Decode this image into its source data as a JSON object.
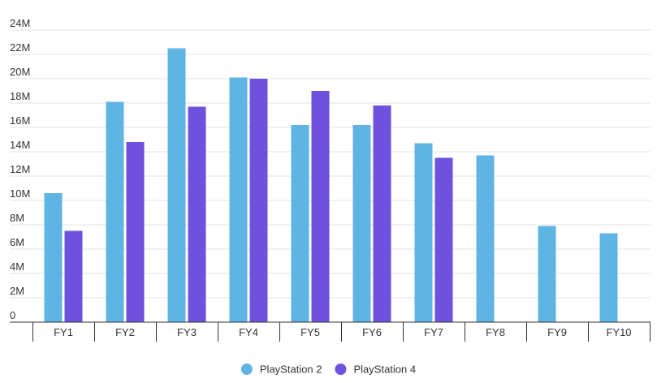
{
  "chart_data": {
    "type": "bar",
    "title": "",
    "xlabel": "",
    "ylabel": "",
    "categories": [
      "FY1",
      "FY2",
      "FY3",
      "FY4",
      "FY5",
      "FY6",
      "FY7",
      "FY8",
      "FY9",
      "FY10"
    ],
    "series": [
      {
        "name": "PlayStation 2",
        "color": "#5eb4e3",
        "values": [
          10.6,
          18.1,
          22.5,
          20.1,
          16.2,
          16.2,
          14.7,
          13.7,
          7.9,
          7.3
        ]
      },
      {
        "name": "PlayStation 4",
        "color": "#6e52dd",
        "values": [
          7.5,
          14.8,
          17.7,
          20.0,
          19.0,
          17.8,
          13.5,
          null,
          null,
          null
        ]
      }
    ],
    "ylim": [
      0,
      24
    ],
    "yticks": [
      0,
      2,
      4,
      6,
      8,
      10,
      12,
      14,
      16,
      18,
      20,
      22,
      24
    ],
    "ytick_labels": [
      "0",
      "2M",
      "4M",
      "6M",
      "8M",
      "10M",
      "12M",
      "14M",
      "16M",
      "18M",
      "20M",
      "22M",
      "24M"
    ],
    "grid": true,
    "legend": {
      "position": "bottom-center"
    }
  }
}
